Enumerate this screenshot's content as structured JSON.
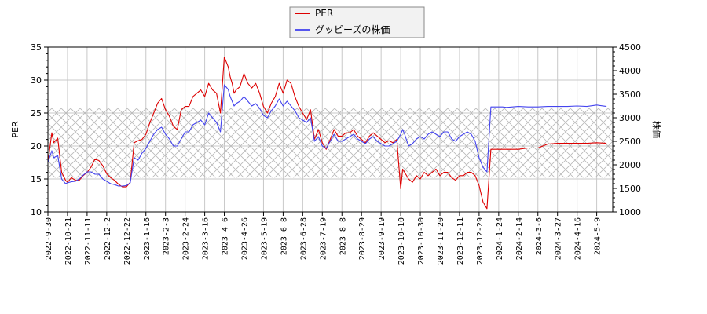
{
  "chart_data": {
    "type": "line",
    "title": "",
    "legend": {
      "position": "top-center",
      "entries": [
        {
          "label": "PER",
          "color": "#dd0000"
        },
        {
          "label": "グッピーズの株価",
          "color": "#4444ee"
        }
      ]
    },
    "xlabel": "",
    "ylabel_left": "PER",
    "ylabel_right": "株価",
    "ylim_left": [
      10,
      35
    ],
    "ylim_right": [
      1000,
      4500
    ],
    "yticks_left": [
      10,
      15,
      20,
      25,
      30,
      35
    ],
    "yticks_right": [
      1000,
      1500,
      2000,
      2500,
      3000,
      3500,
      4000,
      4500
    ],
    "grid": true,
    "shaded_band": {
      "axis": "left",
      "from": 15.2,
      "to": 25.8,
      "pattern": "crosshatch",
      "color": "#bbbbbb"
    },
    "x_tick_labels": [
      "2022-9-30",
      "2022-10-21",
      "2022-11-11",
      "2022-12-2",
      "2022-12-22",
      "2023-1-16",
      "2023-2-3",
      "2023-2-24",
      "2023-3-16",
      "2023-4-6",
      "2023-4-26",
      "2023-5-19",
      "2023-6-8",
      "2023-6-28",
      "2023-7-19",
      "2023-8-8",
      "2023-8-29",
      "2023-9-19",
      "2023-10-10",
      "2023-10-30",
      "2023-11-20",
      "2023-12-11",
      "2023-12-29",
      "2024-1-24",
      "2024-2-14",
      "2024-3-6",
      "2024-3-27",
      "2024-4-16",
      "2024-5-9"
    ],
    "series": [
      {
        "name": "PER",
        "axis": "left",
        "color": "#dd0000",
        "x_index": [
          0,
          0.2,
          0.3,
          0.5,
          0.7,
          0.9,
          1.0,
          1.2,
          1.4,
          1.6,
          1.8,
          2.0,
          2.2,
          2.4,
          2.6,
          2.8,
          3.0,
          3.2,
          3.4,
          3.6,
          3.8,
          4.0,
          4.2,
          4.4,
          4.6,
          4.8,
          5.0,
          5.2,
          5.4,
          5.6,
          5.8,
          6.0,
          6.2,
          6.4,
          6.6,
          6.8,
          7.0,
          7.2,
          7.4,
          7.6,
          7.8,
          8.0,
          8.2,
          8.4,
          8.6,
          8.8,
          9.0,
          9.2,
          9.3,
          9.4,
          9.5,
          9.6,
          9.8,
          10.0,
          10.2,
          10.4,
          10.6,
          10.8,
          11.0,
          11.2,
          11.4,
          11.6,
          11.8,
          12.0,
          12.2,
          12.4,
          12.6,
          12.8,
          13.0,
          13.2,
          13.4,
          13.6,
          13.8,
          14.0,
          14.2,
          14.4,
          14.6,
          14.8,
          15.0,
          15.2,
          15.4,
          15.6,
          15.8,
          16.0,
          16.2,
          16.4,
          16.6,
          16.8,
          17.0,
          17.2,
          17.4,
          17.6,
          17.8,
          18.0,
          18.1,
          18.2,
          18.4,
          18.6,
          18.8,
          19.0,
          19.2,
          19.4,
          19.6,
          19.8,
          20.0,
          20.2,
          20.4,
          20.6,
          20.8,
          21.0,
          21.2,
          21.4,
          21.6,
          21.8,
          22.0,
          22.2,
          22.4,
          22.6,
          22.8,
          23.0,
          23.2,
          23.4,
          24.0,
          24.5,
          25.0,
          25.5,
          26.0,
          26.5,
          27.0,
          27.5,
          28.0,
          28.5,
          28.9
        ],
        "values": [
          17.5,
          22.0,
          20.5,
          21.2,
          16.0,
          14.8,
          14.5,
          15.2,
          14.8,
          14.8,
          15.5,
          16.0,
          16.8,
          18.0,
          17.8,
          17.0,
          15.8,
          15.2,
          14.8,
          14.2,
          13.8,
          13.8,
          14.5,
          20.5,
          20.8,
          21.0,
          21.8,
          23.5,
          25.0,
          26.5,
          27.2,
          25.5,
          24.5,
          23.0,
          22.5,
          25.5,
          26.0,
          26.0,
          27.5,
          28.0,
          28.5,
          27.5,
          29.5,
          28.5,
          28.0,
          25.0,
          33.5,
          32.0,
          30.5,
          29.5,
          28.0,
          28.5,
          29.0,
          31.0,
          29.5,
          28.8,
          29.5,
          28.0,
          26.0,
          25.0,
          26.5,
          27.5,
          29.5,
          28.0,
          30.0,
          29.5,
          27.5,
          26.0,
          25.0,
          24.0,
          25.5,
          21.0,
          22.5,
          20.5,
          19.5,
          21.0,
          22.5,
          21.5,
          21.5,
          22.0,
          22.0,
          22.5,
          21.5,
          21.0,
          20.5,
          21.5,
          22.0,
          21.5,
          21.0,
          20.5,
          20.8,
          20.5,
          21.0,
          13.5,
          16.5,
          16.0,
          15.0,
          14.5,
          15.5,
          15.0,
          16.0,
          15.5,
          16.0,
          16.5,
          15.5,
          16.0,
          16.0,
          15.2,
          14.8,
          15.5,
          15.5,
          16.0,
          16.0,
          15.5,
          14.0,
          11.5,
          10.5,
          19.5,
          19.5,
          19.5,
          19.5,
          19.5,
          19.5,
          19.7,
          19.7,
          20.3,
          20.4,
          20.4,
          20.4,
          20.4,
          20.5,
          20.4
        ]
      },
      {
        "name": "グッピーズの株価",
        "axis": "right",
        "color": "#4444ee",
        "x_index": [
          0,
          0.2,
          0.3,
          0.5,
          0.7,
          0.9,
          1.0,
          1.2,
          1.4,
          1.6,
          1.8,
          2.0,
          2.2,
          2.4,
          2.6,
          2.8,
          3.0,
          3.2,
          3.4,
          3.6,
          3.8,
          4.0,
          4.2,
          4.4,
          4.6,
          4.8,
          5.0,
          5.2,
          5.4,
          5.6,
          5.8,
          6.0,
          6.2,
          6.4,
          6.6,
          6.8,
          7.0,
          7.2,
          7.4,
          7.6,
          7.8,
          8.0,
          8.2,
          8.4,
          8.6,
          8.8,
          9.0,
          9.2,
          9.3,
          9.4,
          9.5,
          9.6,
          9.8,
          10.0,
          10.2,
          10.4,
          10.6,
          10.8,
          11.0,
          11.2,
          11.4,
          11.6,
          11.8,
          12.0,
          12.2,
          12.4,
          12.6,
          12.8,
          13.0,
          13.2,
          13.4,
          13.6,
          13.8,
          14.0,
          14.2,
          14.4,
          14.6,
          14.8,
          15.0,
          15.2,
          15.4,
          15.6,
          15.8,
          16.0,
          16.2,
          16.4,
          16.6,
          16.8,
          17.0,
          17.2,
          17.4,
          17.6,
          17.8,
          18.0,
          18.1,
          18.2,
          18.4,
          18.6,
          18.8,
          19.0,
          19.2,
          19.4,
          19.6,
          19.8,
          20.0,
          20.2,
          20.4,
          20.6,
          20.8,
          21.0,
          21.2,
          21.4,
          21.6,
          21.8,
          22.0,
          22.2,
          22.4,
          22.6,
          22.8,
          23.0,
          23.2,
          23.4,
          24.0,
          24.5,
          25.0,
          25.5,
          26.0,
          26.5,
          27.0,
          27.5,
          28.0,
          28.5,
          28.9
        ],
        "values": [
          2050,
          2300,
          2150,
          2200,
          1700,
          1600,
          1620,
          1640,
          1650,
          1700,
          1780,
          1850,
          1850,
          1800,
          1800,
          1700,
          1650,
          1600,
          1580,
          1550,
          1550,
          1560,
          1620,
          2150,
          2100,
          2250,
          2350,
          2500,
          2650,
          2750,
          2800,
          2650,
          2550,
          2400,
          2400,
          2550,
          2700,
          2700,
          2850,
          2900,
          2950,
          2850,
          3100,
          3000,
          2900,
          2700,
          3700,
          3600,
          3450,
          3350,
          3250,
          3300,
          3350,
          3450,
          3350,
          3250,
          3300,
          3200,
          3050,
          3000,
          3150,
          3250,
          3400,
          3250,
          3350,
          3250,
          3150,
          3000,
          2950,
          2900,
          3000,
          2500,
          2600,
          2400,
          2350,
          2500,
          2650,
          2500,
          2500,
          2550,
          2600,
          2650,
          2550,
          2500,
          2450,
          2550,
          2600,
          2500,
          2450,
          2400,
          2400,
          2450,
          2500,
          2650,
          2750,
          2650,
          2400,
          2450,
          2550,
          2600,
          2550,
          2650,
          2700,
          2650,
          2600,
          2700,
          2700,
          2550,
          2500,
          2600,
          2650,
          2700,
          2650,
          2500,
          2150,
          1950,
          1850,
          3230,
          3230,
          3230,
          3230,
          3220,
          3240,
          3230,
          3230,
          3240,
          3240,
          3240,
          3250,
          3240,
          3270,
          3240
        ]
      }
    ]
  }
}
